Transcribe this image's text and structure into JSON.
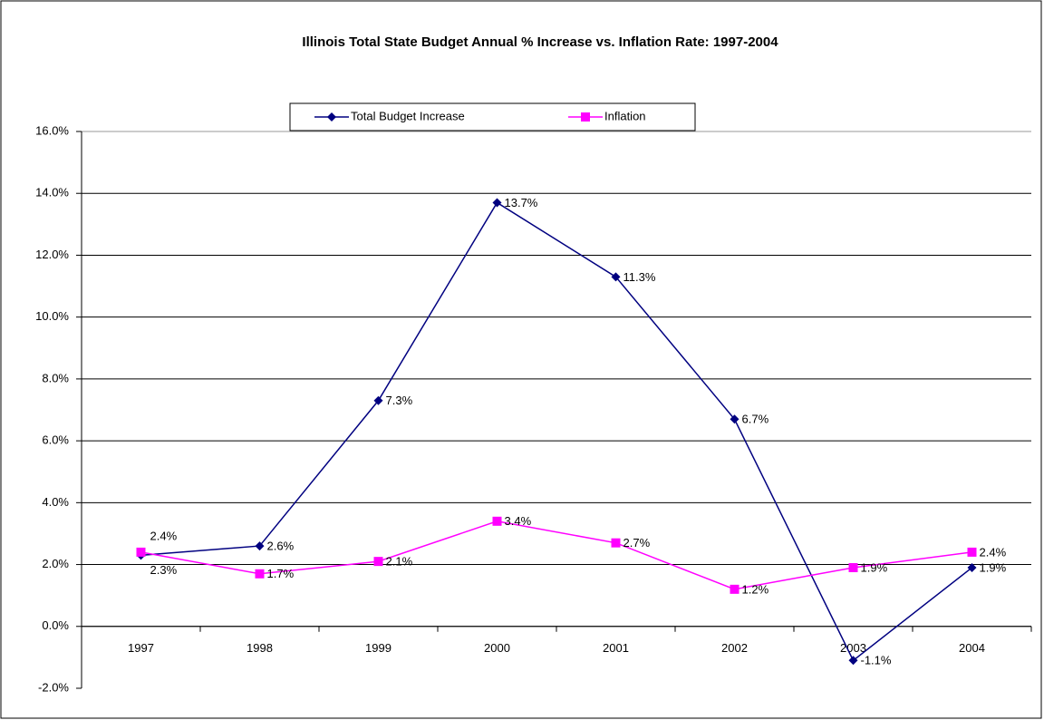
{
  "chart_data": {
    "type": "line",
    "title": "Illinois Total State Budget Annual % Increase vs. Inflation Rate: 1997-2004",
    "categories": [
      "1997",
      "1998",
      "1999",
      "2000",
      "2001",
      "2002",
      "2003",
      "2004"
    ],
    "series": [
      {
        "name": "Total Budget Increase",
        "color": "#000080",
        "marker": "diamond",
        "values": [
          2.3,
          2.6,
          7.3,
          13.7,
          11.3,
          6.7,
          -1.1,
          1.9
        ],
        "value_labels": [
          "2.3%",
          "2.6%",
          "7.3%",
          "13.7%",
          "11.3%",
          "6.7%",
          "-1.1%",
          "1.9%"
        ]
      },
      {
        "name": "Inflation",
        "color": "#ff00ff",
        "marker": "square",
        "values": [
          2.4,
          1.7,
          2.1,
          3.4,
          2.7,
          1.2,
          1.9,
          2.4
        ],
        "value_labels": [
          "2.4%",
          "1.7%",
          "2.1%",
          "3.4%",
          "2.7%",
          "1.2%",
          "1.9%",
          "2.4%"
        ]
      }
    ],
    "ylim": [
      -2,
      16
    ],
    "yticks": [
      {
        "value": -2,
        "label": "-2.0%"
      },
      {
        "value": 0,
        "label": "0.0%"
      },
      {
        "value": 2,
        "label": "2.0%"
      },
      {
        "value": 4,
        "label": "4.0%"
      },
      {
        "value": 6,
        "label": "6.0%"
      },
      {
        "value": 8,
        "label": "8.0%"
      },
      {
        "value": 10,
        "label": "10.0%"
      },
      {
        "value": 12,
        "label": "12.0%"
      },
      {
        "value": 14,
        "label": "14.0%"
      },
      {
        "value": 16,
        "label": "16.0%"
      }
    ],
    "grid": true,
    "legend": "top"
  }
}
